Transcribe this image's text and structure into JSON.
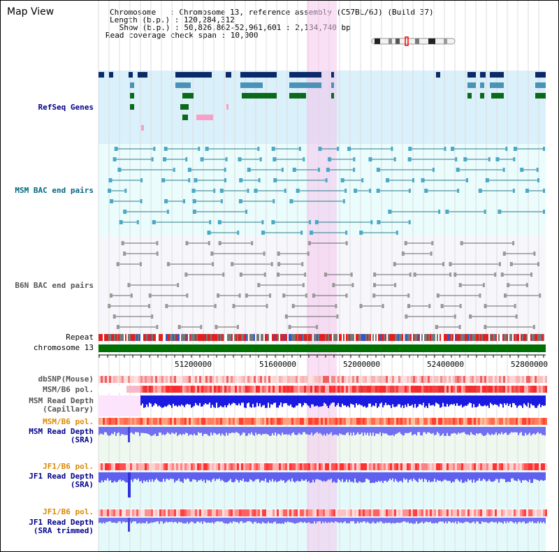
{
  "title": "Map View",
  "info": {
    "chromosome_line": "Chromosome   : Chromosome 13, reference assembly (C57BL/6J) (Build 37)",
    "length_line": "Length (b.p.) : 120,284,312",
    "show_line": " Show (b.p.) : 50,826,862-52,961,601 : 2,134,740 bp",
    "coverage_line": "Read coverage check span : 10,000"
  },
  "tracks": {
    "refseq": "RefSeq Genes",
    "msm_bac": "MSM BAC end pairs",
    "b6n_bac": "B6N BAC end pairs",
    "repeat": "Repeat",
    "chromosome": "chromosome 13",
    "dbsnp": "dbSNP(Mouse)",
    "msm_b6_pol_1": "MSM/B6 pol.",
    "msm_depth_cap_1": "MSM Read Depth",
    "msm_depth_cap_2": "(Capillary)",
    "msm_b6_pol_2": "MSM/B6 pol.",
    "msm_depth_sra_1": "MSM Read Depth",
    "msm_depth_sra_2": "(SRA)",
    "jf1_b6_pol_1": "JF1/B6 pol.",
    "jf1_depth_sra_1": "JF1 Read Depth",
    "jf1_depth_sra_2": "(SRA)",
    "jf1_b6_pol_2": "JF1/B6 pol.",
    "jf1_depth_trim_1": "JF1 Read Depth",
    "jf1_depth_trim_2": "(SRA trimmed)"
  },
  "axis": {
    "ticks": [
      "51200000",
      "51600000",
      "52000000",
      "52400000",
      "52800000"
    ]
  },
  "colors": {
    "navy_label": "#00008b",
    "teal_label": "#006680",
    "gray_label": "#555555",
    "orange_label": "#dd8800",
    "highlight": "#f6d6f0",
    "chrom_green": "#007000"
  }
}
